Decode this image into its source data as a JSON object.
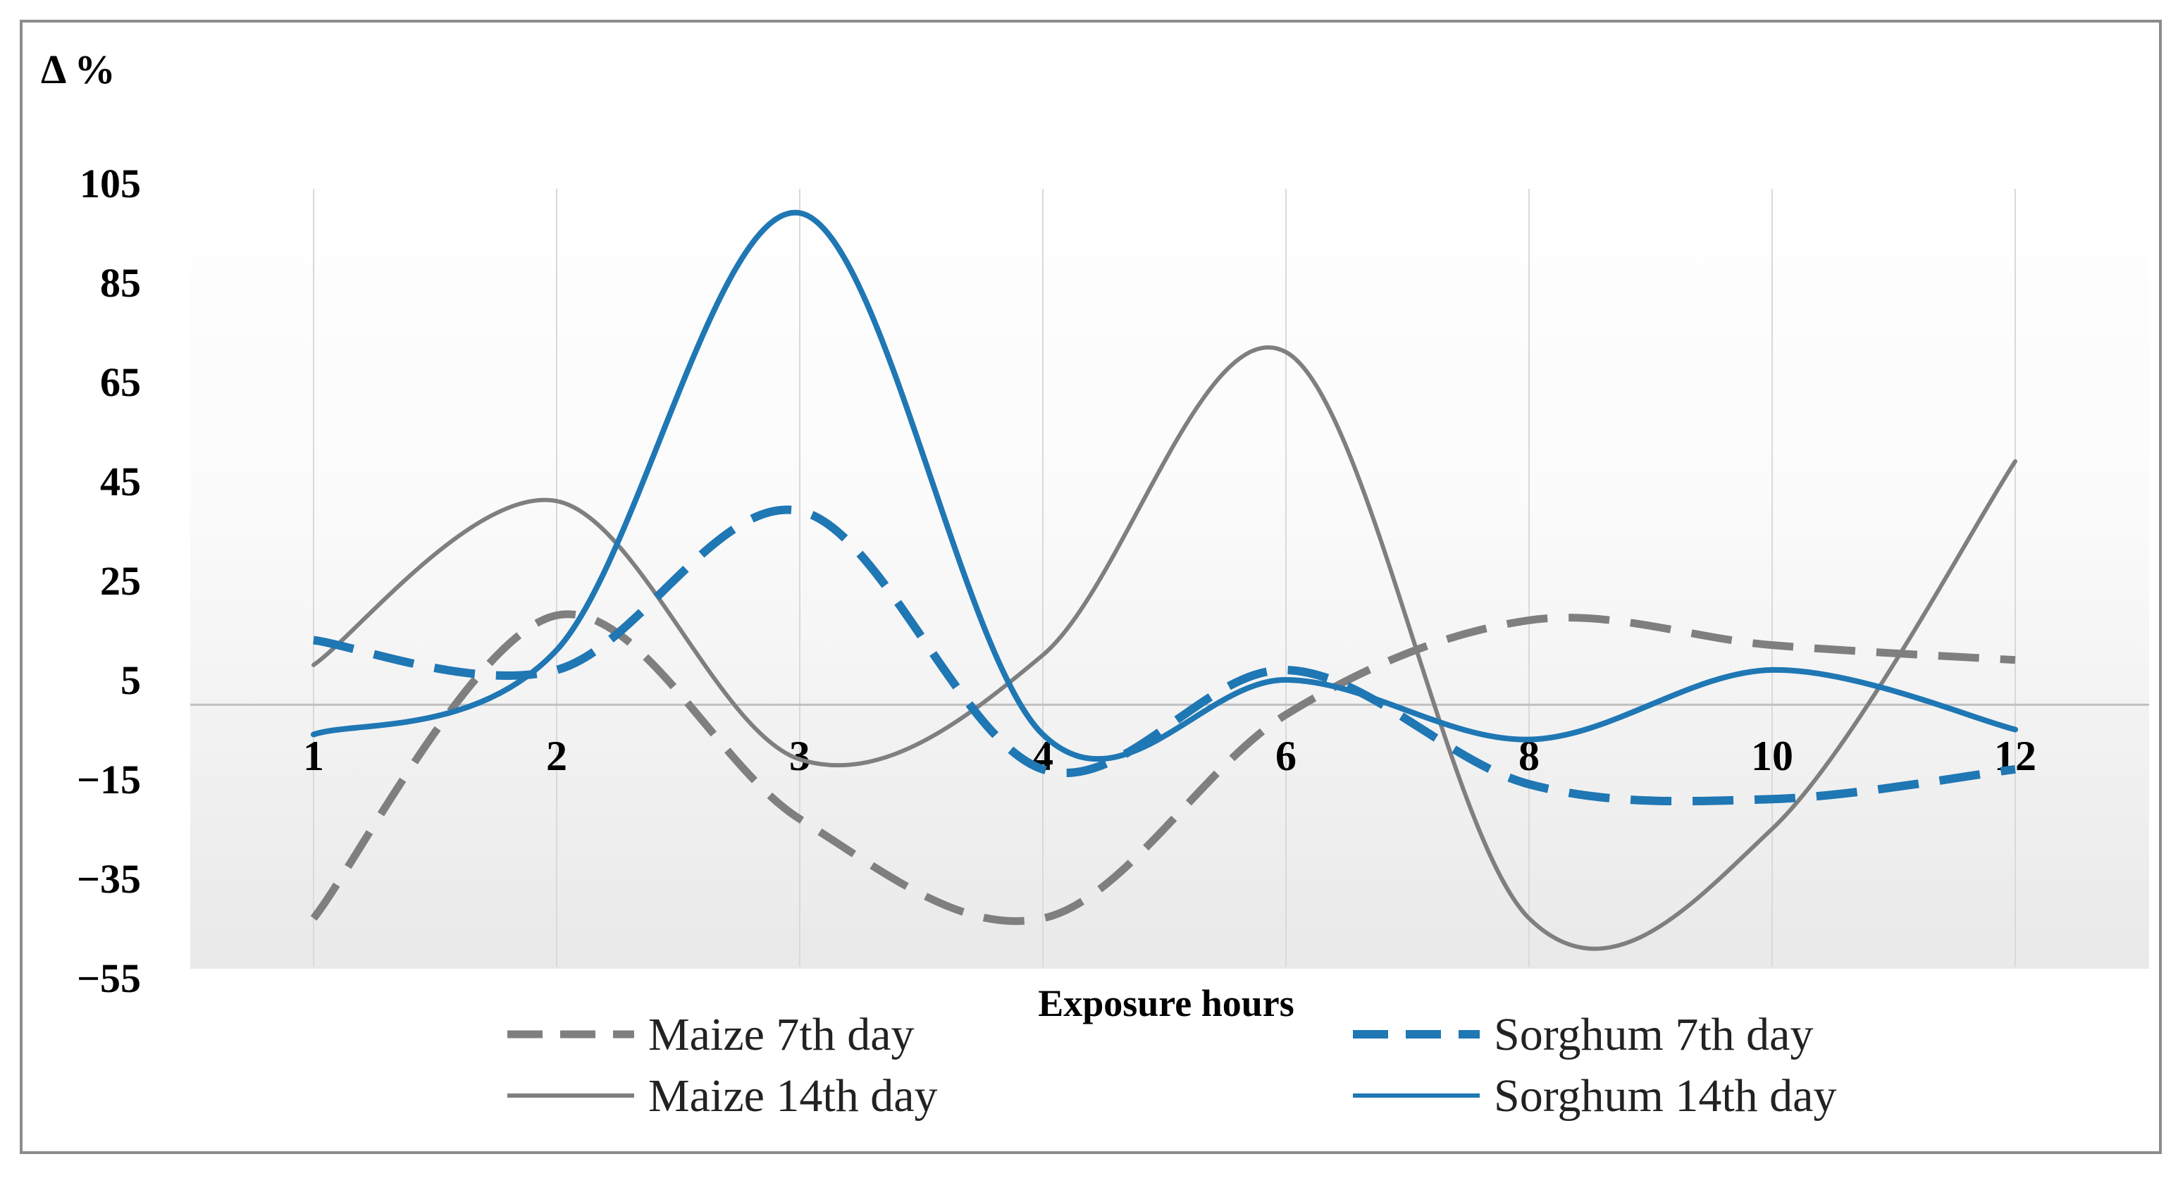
{
  "chart_data": {
    "type": "line",
    "title": "",
    "xlabel": "Exposure hours",
    "ylabel": "Δ %",
    "categories": [
      "1",
      "2",
      "3",
      "4",
      "6",
      "8",
      "10",
      "12"
    ],
    "y_ticks": [
      105,
      85,
      65,
      45,
      25,
      5,
      -15,
      -35,
      -55
    ],
    "ylim": [
      -55,
      105
    ],
    "grid": "vertical",
    "legend_position": "bottom",
    "series": [
      {
        "name": "Maize 7th day",
        "values": [
          -43,
          18,
          -23,
          -43,
          -2,
          17,
          12,
          9
        ],
        "color": "#7f7f7f",
        "style": "dashed"
      },
      {
        "name": "Sorghum 7th day",
        "values": [
          13,
          7,
          39,
          -13,
          7,
          -16,
          -19,
          -13
        ],
        "color": "#1f77b4",
        "style": "dashed"
      },
      {
        "name": "Maize 14th day",
        "values": [
          8,
          41,
          -11,
          10,
          71,
          -43,
          -25,
          49
        ],
        "color": "#7f7f7f",
        "style": "solid"
      },
      {
        "name": "Sorghum 14th day",
        "values": [
          -6,
          11,
          99,
          -6,
          5,
          -7,
          7,
          -5
        ],
        "color": "#1f77b4",
        "style": "solid"
      }
    ]
  }
}
